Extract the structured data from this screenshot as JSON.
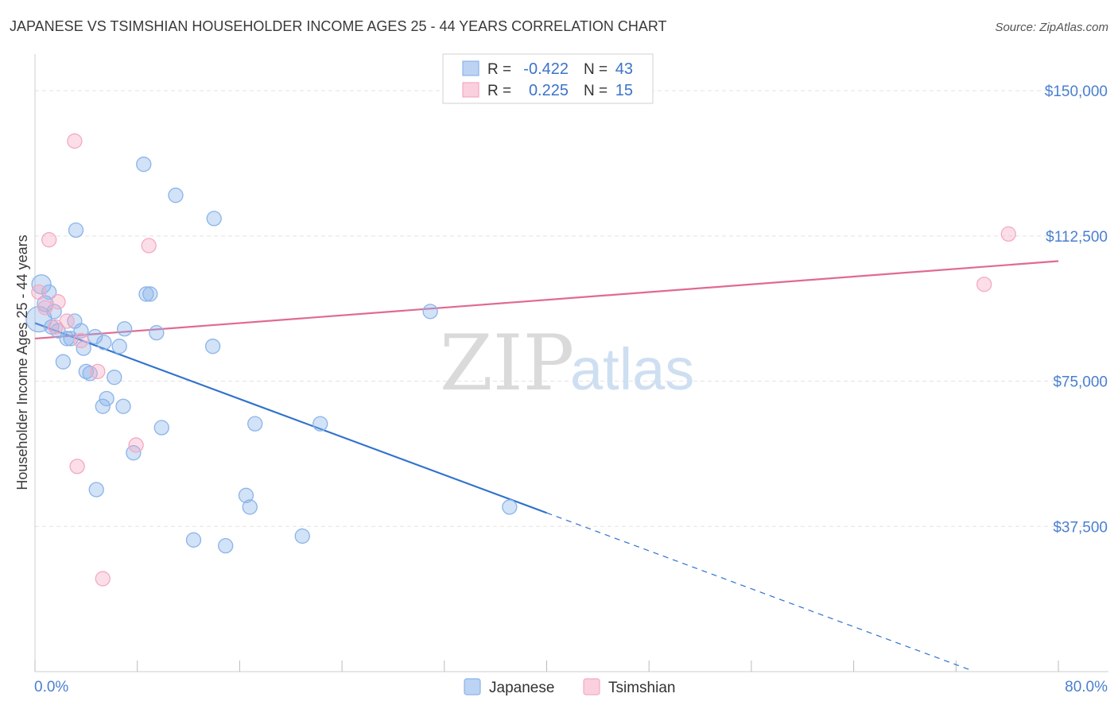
{
  "chart_data": {
    "type": "scatter",
    "title": "JAPANESE VS TSIMSHIAN HOUSEHOLDER INCOME AGES 25 - 44 YEARS CORRELATION CHART",
    "source": "Source: ZipAtlas.com",
    "xlabel": "",
    "ylabel": "Householder Income Ages 25 - 44 years",
    "xlim": [
      0,
      80
    ],
    "ylim": [
      0,
      157000
    ],
    "x_tick_labels": {
      "left": "0.0%",
      "right": "80.0%"
    },
    "y_ticks": [
      {
        "value": 37500,
        "label": "$37,500"
      },
      {
        "value": 75000,
        "label": "$75,000"
      },
      {
        "value": 112500,
        "label": "$112,500"
      },
      {
        "value": 150000,
        "label": "$150,000"
      }
    ],
    "watermark": {
      "part1": "ZIP",
      "part2": "atlas"
    },
    "legend": {
      "rows": [
        {
          "r_label": "R =",
          "r_value": "-0.422",
          "n_label": "N =",
          "n_value": "43"
        },
        {
          "r_label": "R =",
          "r_value": "0.225",
          "n_label": "N =",
          "n_value": "15"
        }
      ]
    },
    "series": [
      {
        "name": "Japanese",
        "color": "#8ab4ea",
        "line_color": "#2f72cc",
        "trend": {
          "x0": 0,
          "y0": 90000,
          "x1": 40,
          "y1": 41000,
          "dash_to_x": 73
        },
        "points": [
          [
            0.3,
            91000,
            16
          ],
          [
            0.5,
            100000,
            12
          ],
          [
            0.8,
            95000,
            10
          ],
          [
            1.1,
            98000,
            9
          ],
          [
            1.3,
            89000,
            9
          ],
          [
            1.5,
            93000,
            9
          ],
          [
            1.8,
            88000,
            9
          ],
          [
            2.2,
            80000,
            9
          ],
          [
            2.5,
            86000,
            9
          ],
          [
            2.8,
            86000,
            9
          ],
          [
            3.1,
            90500,
            9
          ],
          [
            3.2,
            114000,
            9
          ],
          [
            3.6,
            88000,
            9
          ],
          [
            3.8,
            83500,
            9
          ],
          [
            4.0,
            77500,
            9
          ],
          [
            4.3,
            77000,
            9
          ],
          [
            4.7,
            86500,
            9
          ],
          [
            4.8,
            47000,
            9
          ],
          [
            5.3,
            68500,
            9
          ],
          [
            5.4,
            85000,
            9
          ],
          [
            5.6,
            70500,
            9
          ],
          [
            6.2,
            76000,
            9
          ],
          [
            6.6,
            84000,
            9
          ],
          [
            6.9,
            68500,
            9
          ],
          [
            7.0,
            88500,
            9
          ],
          [
            7.7,
            56500,
            9
          ],
          [
            8.5,
            131000,
            9
          ],
          [
            8.7,
            97500,
            9
          ],
          [
            9.0,
            97500,
            9
          ],
          [
            9.5,
            87500,
            9
          ],
          [
            9.9,
            63000,
            9
          ],
          [
            11.0,
            123000,
            9
          ],
          [
            12.4,
            34000,
            9
          ],
          [
            13.9,
            84000,
            9
          ],
          [
            14.0,
            117000,
            9
          ],
          [
            14.9,
            32500,
            9
          ],
          [
            16.5,
            45500,
            9
          ],
          [
            16.8,
            42500,
            9
          ],
          [
            17.2,
            64000,
            9
          ],
          [
            20.9,
            35000,
            9
          ],
          [
            22.3,
            64000,
            9
          ],
          [
            30.9,
            93000,
            9
          ],
          [
            37.1,
            42500,
            9
          ]
        ]
      },
      {
        "name": "Tsimshian",
        "color": "#f4a9c2",
        "line_color": "#e06a93",
        "trend": {
          "x0": 0,
          "y0": 86000,
          "x1": 80,
          "y1": 106000
        },
        "points": [
          [
            0.3,
            98000,
            9
          ],
          [
            0.8,
            94000,
            9
          ],
          [
            1.1,
            111500,
            9
          ],
          [
            1.6,
            89000,
            9
          ],
          [
            1.8,
            95500,
            9
          ],
          [
            2.5,
            90500,
            9
          ],
          [
            3.1,
            137000,
            9
          ],
          [
            3.3,
            53000,
            9
          ],
          [
            3.6,
            85500,
            9
          ],
          [
            4.9,
            77500,
            9
          ],
          [
            5.3,
            24000,
            9
          ],
          [
            7.9,
            58500,
            9
          ],
          [
            8.9,
            110000,
            9
          ],
          [
            74.2,
            100000,
            9
          ],
          [
            76.1,
            113000,
            9
          ]
        ]
      }
    ]
  }
}
